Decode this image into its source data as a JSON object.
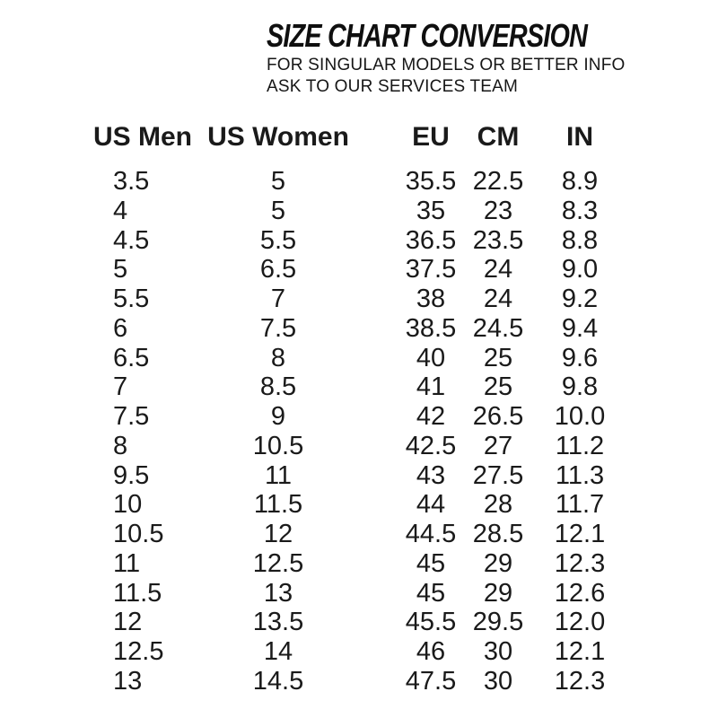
{
  "header": {
    "title": "SIZE CHART CONVERSION",
    "subtitle_line1": "FOR SINGULAR MODELS OR BETTER INFO",
    "subtitle_line2": "ASK TO OUR SERVICES TEAM"
  },
  "chart_data": {
    "type": "table",
    "title": "SIZE CHART CONVERSION",
    "subtitle": "FOR SINGULAR MODELS OR BETTER INFO ASK TO OUR SERVICES TEAM",
    "columns": [
      "US Men",
      "US Women",
      "EU",
      "CM",
      "IN"
    ],
    "rows": [
      [
        "3.5",
        "5",
        "35.5",
        "22.5",
        "8.9"
      ],
      [
        "4",
        "5",
        "35",
        "23",
        "8.3"
      ],
      [
        "4.5",
        "5.5",
        "36.5",
        "23.5",
        "8.8"
      ],
      [
        "5",
        "6.5",
        "37.5",
        "24",
        "9.0"
      ],
      [
        "5.5",
        "7",
        "38",
        "24",
        "9.2"
      ],
      [
        "6",
        "7.5",
        "38.5",
        "24.5",
        "9.4"
      ],
      [
        "6.5",
        "8",
        "40",
        "25",
        "9.6"
      ],
      [
        "7",
        "8.5",
        "41",
        "25",
        "9.8"
      ],
      [
        "7.5",
        "9",
        "42",
        "26.5",
        "10.0"
      ],
      [
        "8",
        "10.5",
        "42.5",
        "27",
        "11.2"
      ],
      [
        "9.5",
        "11",
        "43",
        "27.5",
        "11.3"
      ],
      [
        "10",
        "11.5",
        "44",
        "28",
        "11.7"
      ],
      [
        "10.5",
        "12",
        "44.5",
        "28.5",
        "12.1"
      ],
      [
        "11",
        "12.5",
        "45",
        "29",
        "12.3"
      ],
      [
        "11.5",
        "13",
        "45",
        "29",
        "12.6"
      ],
      [
        "12",
        "13.5",
        "45.5",
        "29.5",
        "12.0"
      ],
      [
        "12.5",
        "14",
        "46",
        "30",
        "12.1"
      ],
      [
        "13",
        "14.5",
        "47.5",
        "30",
        "12.3"
      ]
    ],
    "layout": {
      "legend": "none",
      "grid": "off",
      "column_alignment": [
        "left",
        "center",
        "center",
        "center",
        "center"
      ]
    }
  },
  "colors": {
    "background": "#ffffff",
    "text": "#1a1a1a",
    "title": "#0f0f0f"
  }
}
